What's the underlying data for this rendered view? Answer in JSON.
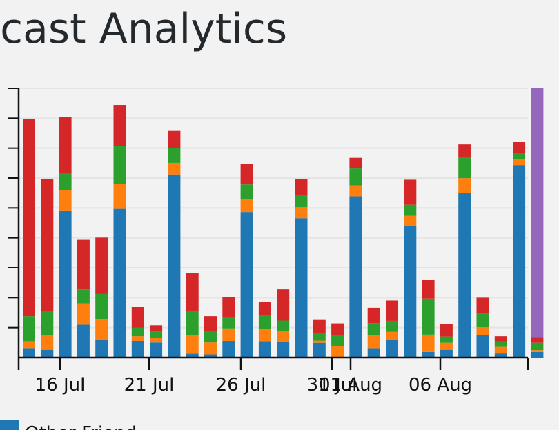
{
  "page": {
    "title": "dcast Analytics"
  },
  "chart_data": {
    "type": "bar",
    "stacked": true,
    "ylim": [
      0,
      8600
    ],
    "grid": true,
    "x_tick_labels": [
      "16 Jul",
      "21 Jul",
      "26 Jul",
      "31 Jul",
      "01 Aug",
      "06 Aug"
    ],
    "series": [
      {
        "name": "Other Friend",
        "color": "#1f77b4",
        "values": [
          300,
          250,
          4700,
          1050,
          580,
          4750,
          530,
          480,
          5850,
          120,
          100,
          530,
          4650,
          520,
          500,
          4450,
          470,
          0,
          5150,
          300,
          570,
          4200,
          180,
          250,
          5250,
          720,
          130,
          6150,
          180
        ]
      },
      {
        "name": "",
        "color": "#ff7f0e",
        "values": [
          220,
          460,
          650,
          680,
          650,
          800,
          150,
          150,
          370,
          580,
          380,
          400,
          400,
          380,
          350,
          350,
          70,
          360,
          350,
          400,
          250,
          330,
          550,
          220,
          480,
          250,
          210,
          200,
          60
        ]
      },
      {
        "name": "",
        "color": "#2ca02c",
        "values": [
          800,
          780,
          540,
          450,
          800,
          1200,
          270,
          200,
          480,
          800,
          380,
          350,
          480,
          450,
          330,
          400,
          250,
          330,
          540,
          400,
          350,
          350,
          1150,
          200,
          680,
          440,
          170,
          180,
          230
        ]
      },
      {
        "name": "",
        "color": "#d62728",
        "values": [
          6300,
          4220,
          1800,
          1600,
          1800,
          1320,
          660,
          200,
          540,
          1200,
          460,
          640,
          650,
          420,
          1000,
          500,
          430,
          400,
          340,
          490,
          650,
          800,
          590,
          400,
          400,
          500,
          170,
          350,
          180
        ]
      },
      {
        "name": "",
        "color": "#9467bd",
        "values": [
          0,
          0,
          0,
          0,
          0,
          0,
          0,
          0,
          0,
          0,
          0,
          0,
          0,
          0,
          0,
          0,
          0,
          0,
          0,
          0,
          0,
          0,
          0,
          0,
          0,
          0,
          0,
          0,
          7950
        ]
      }
    ]
  }
}
